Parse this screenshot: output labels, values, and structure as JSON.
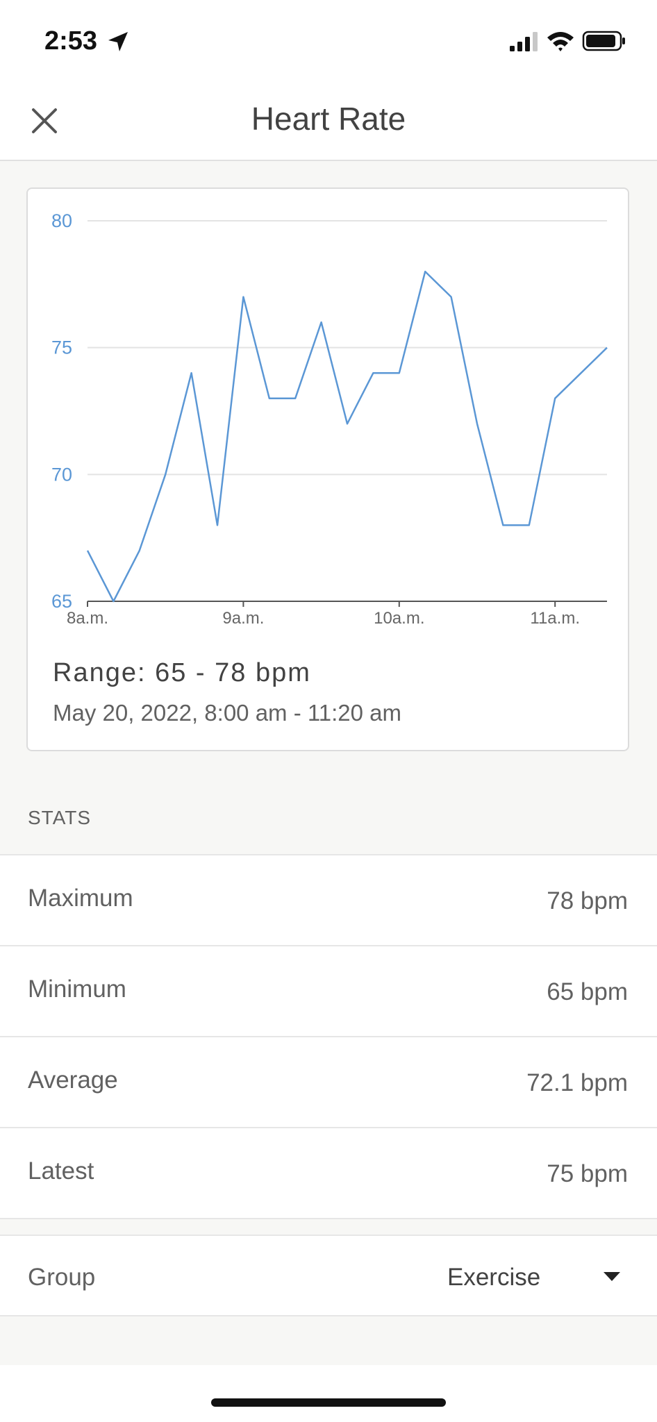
{
  "status_bar": {
    "time": "2:53"
  },
  "header": {
    "title": "Heart Rate",
    "close_icon": "close-icon"
  },
  "chart_data": {
    "type": "line",
    "title": "",
    "xlabel": "",
    "ylabel": "",
    "x_tick_labels": [
      "8a.m.",
      "9a.m.",
      "10a.m.",
      "11a.m."
    ],
    "x_tick_times": [
      "8:00",
      "9:00",
      "10:00",
      "11:00"
    ],
    "y_tick_labels": [
      "80",
      "75",
      "70",
      "65"
    ],
    "y_ticks": [
      80,
      75,
      70,
      65
    ],
    "ylim": [
      65,
      80
    ],
    "xlim": [
      "8:00",
      "11:20"
    ],
    "grid": true,
    "series": [
      {
        "color": "#5b97d5",
        "x": [
          "8:00",
          "8:10",
          "8:20",
          "8:30",
          "8:40",
          "8:50",
          "9:00",
          "9:10",
          "9:20",
          "9:30",
          "9:40",
          "9:50",
          "10:00",
          "10:10",
          "10:20",
          "10:30",
          "10:40",
          "10:50",
          "11:00",
          "11:10",
          "11:20"
        ],
        "values": [
          67,
          65,
          67,
          70,
          74,
          68,
          77,
          73,
          73,
          76,
          72,
          74,
          74,
          78,
          77,
          72,
          68,
          68,
          73,
          74,
          75
        ]
      }
    ],
    "axis_color": "#5b97d5"
  },
  "summary": {
    "range": "Range: 65 - 78 bpm",
    "date": "May 20, 2022, 8:00 am - 11:20 am"
  },
  "stats": {
    "section_label": "STATS",
    "rows": [
      {
        "name": "Maximum",
        "value": "78 bpm"
      },
      {
        "name": "Minimum",
        "value": "65 bpm"
      },
      {
        "name": "Average",
        "value": "72.1 bpm"
      },
      {
        "name": "Latest",
        "value": "75 bpm"
      }
    ]
  },
  "group": {
    "label": "Group",
    "value": "Exercise"
  }
}
